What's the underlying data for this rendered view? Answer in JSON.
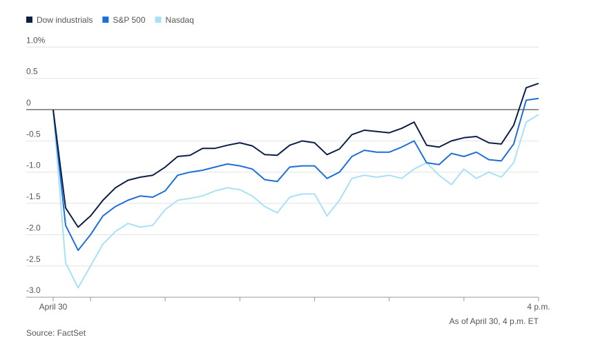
{
  "chart_data": {
    "type": "line",
    "xlim": [
      -5,
      390
    ],
    "xticks": [
      {
        "value": 0,
        "label": "April 30"
      },
      {
        "value": 390,
        "label": "4 p.m."
      }
    ],
    "xtick_marks": [
      30,
      90,
      150,
      210,
      270,
      330
    ],
    "x": [
      0,
      10,
      20,
      30,
      40,
      50,
      60,
      70,
      80,
      90,
      100,
      110,
      120,
      130,
      140,
      150,
      160,
      170,
      180,
      190,
      200,
      210,
      220,
      230,
      240,
      250,
      260,
      270,
      280,
      290,
      300,
      310,
      320,
      330,
      340,
      350,
      360,
      370,
      380,
      390
    ],
    "ylim": [
      -3,
      1
    ],
    "yticks": [
      {
        "value": 1,
        "label": "1.0%"
      },
      0.5,
      0,
      -0.5,
      {
        "value": -1,
        "label": "-1.0"
      },
      -1.5,
      {
        "value": -2,
        "label": "-2.0"
      },
      -2.5,
      {
        "value": -3,
        "label": "-3.0"
      }
    ],
    "grid": true,
    "legend": "top-left",
    "series": [
      {
        "name": "Dow industrials",
        "color": "#0b1f45",
        "values": [
          0,
          -1.57,
          -1.88,
          -1.7,
          -1.45,
          -1.25,
          -1.13,
          -1.08,
          -1.05,
          -0.92,
          -0.75,
          -0.73,
          -0.62,
          -0.62,
          -0.57,
          -0.53,
          -0.58,
          -0.72,
          -0.73,
          -0.57,
          -0.5,
          -0.53,
          -0.72,
          -0.63,
          -0.4,
          -0.33,
          -0.35,
          -0.37,
          -0.3,
          -0.2,
          -0.57,
          -0.6,
          -0.5,
          -0.45,
          -0.43,
          -0.53,
          -0.55,
          -0.25,
          0.35,
          0.42
        ]
      },
      {
        "name": "S&P 500",
        "color": "#1a6fdb",
        "values": [
          0,
          -1.85,
          -2.25,
          -2.0,
          -1.7,
          -1.55,
          -1.45,
          -1.38,
          -1.4,
          -1.3,
          -1.05,
          -1.0,
          -0.97,
          -0.92,
          -0.87,
          -0.9,
          -0.95,
          -1.12,
          -1.15,
          -0.92,
          -0.9,
          -0.9,
          -1.1,
          -1.0,
          -0.75,
          -0.65,
          -0.68,
          -0.68,
          -0.6,
          -0.5,
          -0.85,
          -0.88,
          -0.7,
          -0.75,
          -0.68,
          -0.8,
          -0.82,
          -0.55,
          0.15,
          0.18
        ]
      },
      {
        "name": "Nasdaq",
        "color": "#a8e1f6",
        "values": [
          0,
          -2.45,
          -2.85,
          -2.5,
          -2.15,
          -1.95,
          -1.82,
          -1.88,
          -1.85,
          -1.6,
          -1.45,
          -1.42,
          -1.38,
          -1.3,
          -1.25,
          -1.28,
          -1.38,
          -1.55,
          -1.65,
          -1.4,
          -1.35,
          -1.35,
          -1.7,
          -1.45,
          -1.1,
          -1.05,
          -1.08,
          -1.05,
          -1.1,
          -0.95,
          -0.85,
          -1.05,
          -1.2,
          -0.95,
          -1.1,
          -1.0,
          -1.08,
          -0.85,
          -0.2,
          -0.08
        ]
      }
    ],
    "note": "As of April 30, 4 p.m. ET",
    "source": "Source: FactSet"
  }
}
